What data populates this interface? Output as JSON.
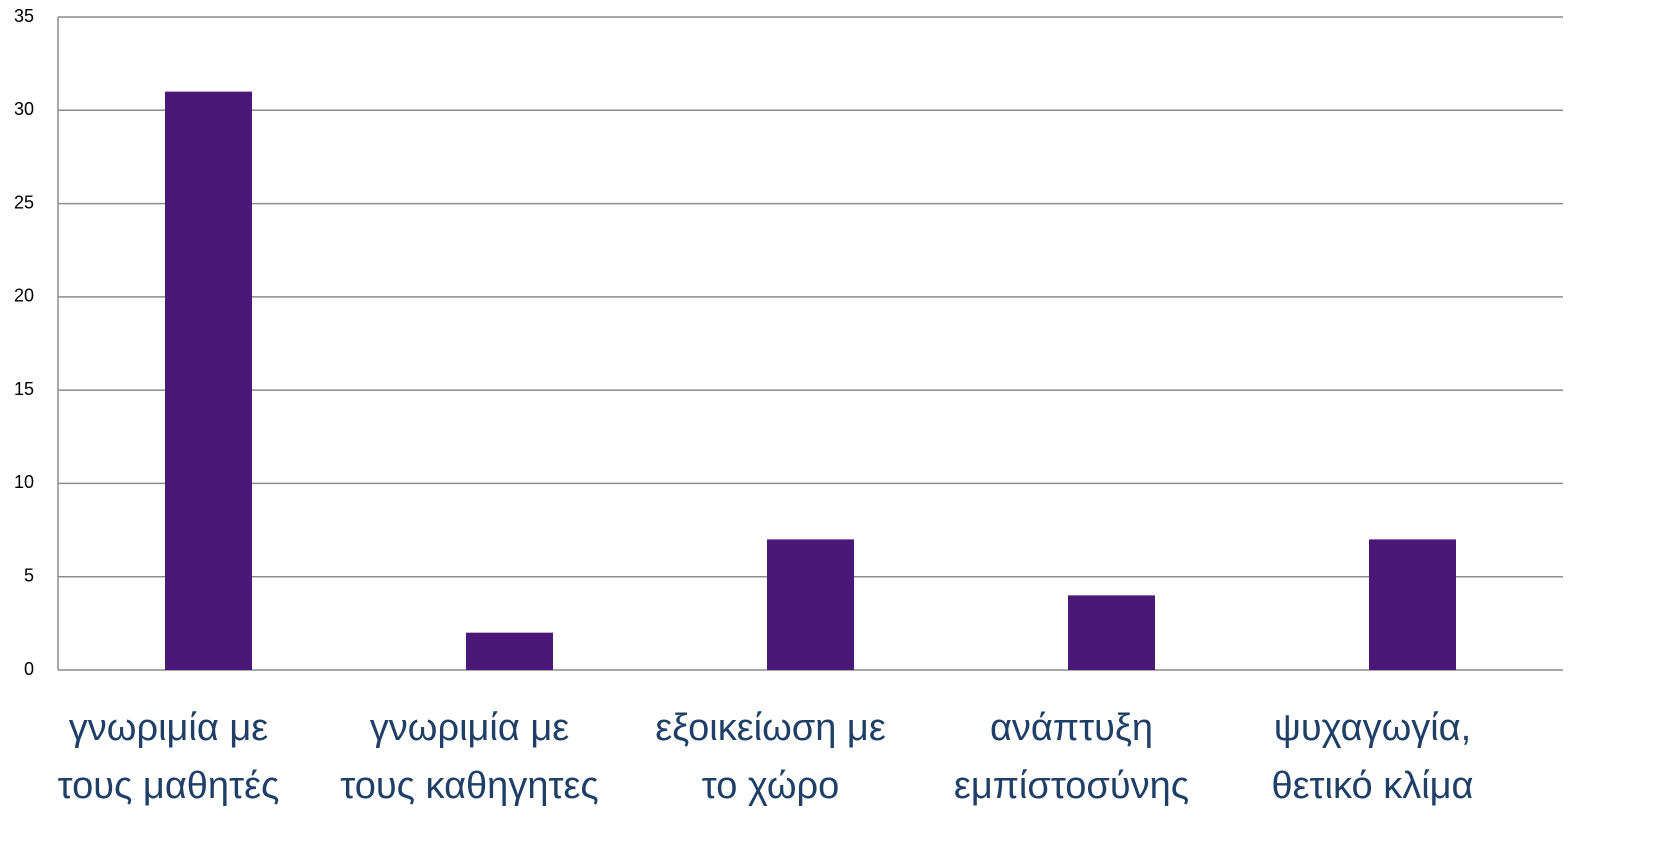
{
  "chart_data": {
    "type": "bar",
    "categories": [
      [
        "γνωριμία με",
        "τους μαθητές"
      ],
      [
        "γνωριμία με",
        "τους καθηγητες"
      ],
      [
        "εξοικείωση με",
        "το χώρο"
      ],
      [
        "ανάπτυξη",
        "εμπίστοσύνης"
      ],
      [
        "ψυχαγωγία,",
        "θετικό κλίμα"
      ]
    ],
    "values": [
      31,
      2,
      7,
      4,
      7
    ],
    "color": "#4a1877",
    "ylim": [
      0,
      35
    ],
    "yticks": [
      0,
      5,
      10,
      15,
      20,
      25,
      30,
      35
    ],
    "grid": true
  }
}
